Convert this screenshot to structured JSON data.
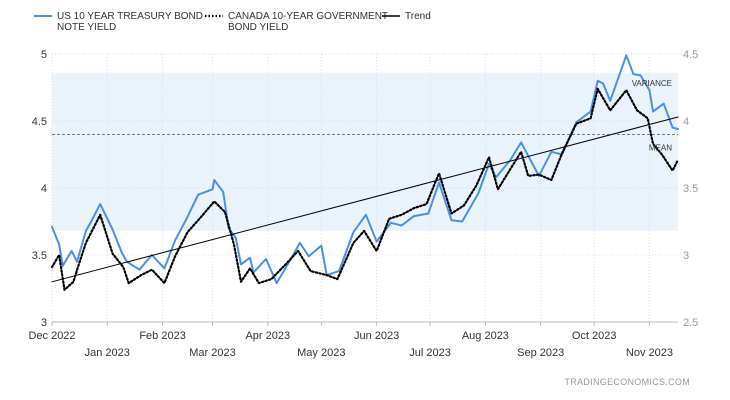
{
  "chart_data": {
    "type": "line",
    "title": "",
    "xlabel": "",
    "ylabel": "",
    "legend_position": "top-left",
    "grid": true,
    "x_start": "2022-12-01",
    "x_end": "2023-11-17",
    "y_left": {
      "range": [
        3,
        5
      ],
      "ticks": [
        3,
        3.5,
        4,
        4.5,
        5
      ]
    },
    "y_right": {
      "range": [
        2.5,
        4.5
      ],
      "ticks": [
        2.5,
        3,
        3.5,
        4,
        4.5
      ]
    },
    "x_ticks_upper": [
      "Dec 2022",
      "Feb 2023",
      "Apr 2023",
      "Jun 2023",
      "Aug 2023",
      "Oct 2023"
    ],
    "x_ticks_lower": [
      "Jan 2023",
      "Mar 2023",
      "May 2023",
      "Jul 2023",
      "Sep 2023",
      "Nov 2023"
    ],
    "series": [
      {
        "name": "US 10 YEAR TREASURY BOND NOTE YIELD",
        "axis": "left",
        "color": "#4a90e2",
        "style": "solid",
        "points": [
          [
            "2022-12-01",
            3.71
          ],
          [
            "2022-12-05",
            3.58
          ],
          [
            "2022-12-07",
            3.42
          ],
          [
            "2022-12-12",
            3.53
          ],
          [
            "2022-12-15",
            3.45
          ],
          [
            "2022-12-20",
            3.68
          ],
          [
            "2022-12-23",
            3.75
          ],
          [
            "2022-12-28",
            3.88
          ],
          [
            "2023-01-04",
            3.69
          ],
          [
            "2023-01-09",
            3.52
          ],
          [
            "2023-01-12",
            3.45
          ],
          [
            "2023-01-19",
            3.39
          ],
          [
            "2023-01-26",
            3.5
          ],
          [
            "2023-02-02",
            3.4
          ],
          [
            "2023-02-08",
            3.61
          ],
          [
            "2023-02-14",
            3.76
          ],
          [
            "2023-02-21",
            3.95
          ],
          [
            "2023-03-01",
            3.99
          ],
          [
            "2023-03-02",
            4.06
          ],
          [
            "2023-03-07",
            3.97
          ],
          [
            "2023-03-10",
            3.7
          ],
          [
            "2023-03-14",
            3.63
          ],
          [
            "2023-03-17",
            3.43
          ],
          [
            "2023-03-22",
            3.48
          ],
          [
            "2023-03-24",
            3.37
          ],
          [
            "2023-03-31",
            3.47
          ],
          [
            "2023-04-06",
            3.29
          ],
          [
            "2023-04-13",
            3.45
          ],
          [
            "2023-04-19",
            3.59
          ],
          [
            "2023-04-24",
            3.49
          ],
          [
            "2023-05-01",
            3.57
          ],
          [
            "2023-05-04",
            3.35
          ],
          [
            "2023-05-11",
            3.38
          ],
          [
            "2023-05-19",
            3.67
          ],
          [
            "2023-05-26",
            3.8
          ],
          [
            "2023-06-01",
            3.6
          ],
          [
            "2023-06-09",
            3.74
          ],
          [
            "2023-06-15",
            3.72
          ],
          [
            "2023-06-22",
            3.79
          ],
          [
            "2023-06-30",
            3.81
          ],
          [
            "2023-07-06",
            4.04
          ],
          [
            "2023-07-13",
            3.76
          ],
          [
            "2023-07-19",
            3.75
          ],
          [
            "2023-07-28",
            3.96
          ],
          [
            "2023-08-03",
            4.18
          ],
          [
            "2023-08-07",
            4.08
          ],
          [
            "2023-08-15",
            4.21
          ],
          [
            "2023-08-21",
            4.34
          ],
          [
            "2023-08-25",
            4.24
          ],
          [
            "2023-08-31",
            4.09
          ],
          [
            "2023-09-07",
            4.27
          ],
          [
            "2023-09-13",
            4.25
          ],
          [
            "2023-09-21",
            4.49
          ],
          [
            "2023-09-29",
            4.57
          ],
          [
            "2023-10-03",
            4.8
          ],
          [
            "2023-10-06",
            4.78
          ],
          [
            "2023-10-10",
            4.65
          ],
          [
            "2023-10-19",
            4.99
          ],
          [
            "2023-10-23",
            4.85
          ],
          [
            "2023-10-27",
            4.84
          ],
          [
            "2023-11-01",
            4.73
          ],
          [
            "2023-11-03",
            4.57
          ],
          [
            "2023-11-09",
            4.63
          ],
          [
            "2023-11-14",
            4.45
          ],
          [
            "2023-11-17",
            4.44
          ]
        ]
      },
      {
        "name": "CANADA 10-YEAR GOVERNMENT BOND YIELD",
        "axis": "right",
        "color": "#000000",
        "style": "dotted",
        "points": [
          [
            "2022-12-01",
            2.91
          ],
          [
            "2022-12-05",
            3.0
          ],
          [
            "2022-12-08",
            2.74
          ],
          [
            "2022-12-13",
            2.8
          ],
          [
            "2022-12-16",
            2.93
          ],
          [
            "2022-12-20",
            3.09
          ],
          [
            "2022-12-28",
            3.3
          ],
          [
            "2023-01-04",
            3.01
          ],
          [
            "2023-01-10",
            2.91
          ],
          [
            "2023-01-13",
            2.79
          ],
          [
            "2023-01-20",
            2.85
          ],
          [
            "2023-01-26",
            2.89
          ],
          [
            "2023-02-02",
            2.79
          ],
          [
            "2023-02-08",
            2.99
          ],
          [
            "2023-02-15",
            3.17
          ],
          [
            "2023-02-23",
            3.29
          ],
          [
            "2023-03-02",
            3.4
          ],
          [
            "2023-03-08",
            3.32
          ],
          [
            "2023-03-13",
            3.08
          ],
          [
            "2023-03-17",
            2.8
          ],
          [
            "2023-03-22",
            2.9
          ],
          [
            "2023-03-27",
            2.79
          ],
          [
            "2023-04-03",
            2.82
          ],
          [
            "2023-04-11",
            2.93
          ],
          [
            "2023-04-18",
            3.03
          ],
          [
            "2023-04-25",
            2.88
          ],
          [
            "2023-05-04",
            2.85
          ],
          [
            "2023-05-10",
            2.82
          ],
          [
            "2023-05-19",
            3.09
          ],
          [
            "2023-05-25",
            3.18
          ],
          [
            "2023-06-01",
            3.03
          ],
          [
            "2023-06-08",
            3.27
          ],
          [
            "2023-06-15",
            3.3
          ],
          [
            "2023-06-22",
            3.35
          ],
          [
            "2023-06-29",
            3.38
          ],
          [
            "2023-07-06",
            3.61
          ],
          [
            "2023-07-13",
            3.31
          ],
          [
            "2023-07-20",
            3.37
          ],
          [
            "2023-07-27",
            3.52
          ],
          [
            "2023-08-03",
            3.73
          ],
          [
            "2023-08-08",
            3.49
          ],
          [
            "2023-08-14",
            3.62
          ],
          [
            "2023-08-21",
            3.77
          ],
          [
            "2023-08-25",
            3.59
          ],
          [
            "2023-08-31",
            3.6
          ],
          [
            "2023-09-07",
            3.56
          ],
          [
            "2023-09-13",
            3.76
          ],
          [
            "2023-09-21",
            3.98
          ],
          [
            "2023-09-29",
            4.02
          ],
          [
            "2023-10-03",
            4.24
          ],
          [
            "2023-10-10",
            4.08
          ],
          [
            "2023-10-19",
            4.23
          ],
          [
            "2023-10-25",
            4.08
          ],
          [
            "2023-10-31",
            4.02
          ],
          [
            "2023-11-03",
            3.83
          ],
          [
            "2023-11-08",
            3.75
          ],
          [
            "2023-11-14",
            3.63
          ],
          [
            "2023-11-17",
            3.71
          ]
        ]
      },
      {
        "name": "Trend",
        "axis": "left",
        "color": "#000000",
        "style": "solid",
        "points": [
          [
            "2022-12-01",
            3.3
          ],
          [
            "2023-11-17",
            4.53
          ]
        ]
      }
    ],
    "annotations": [
      {
        "label": "VARIANCE",
        "axis": "left",
        "band": [
          3.68,
          4.86
        ]
      },
      {
        "label": "MEAN",
        "axis": "left",
        "value": 4.4
      }
    ],
    "source": "TRADINGECONOMICS.COM"
  }
}
